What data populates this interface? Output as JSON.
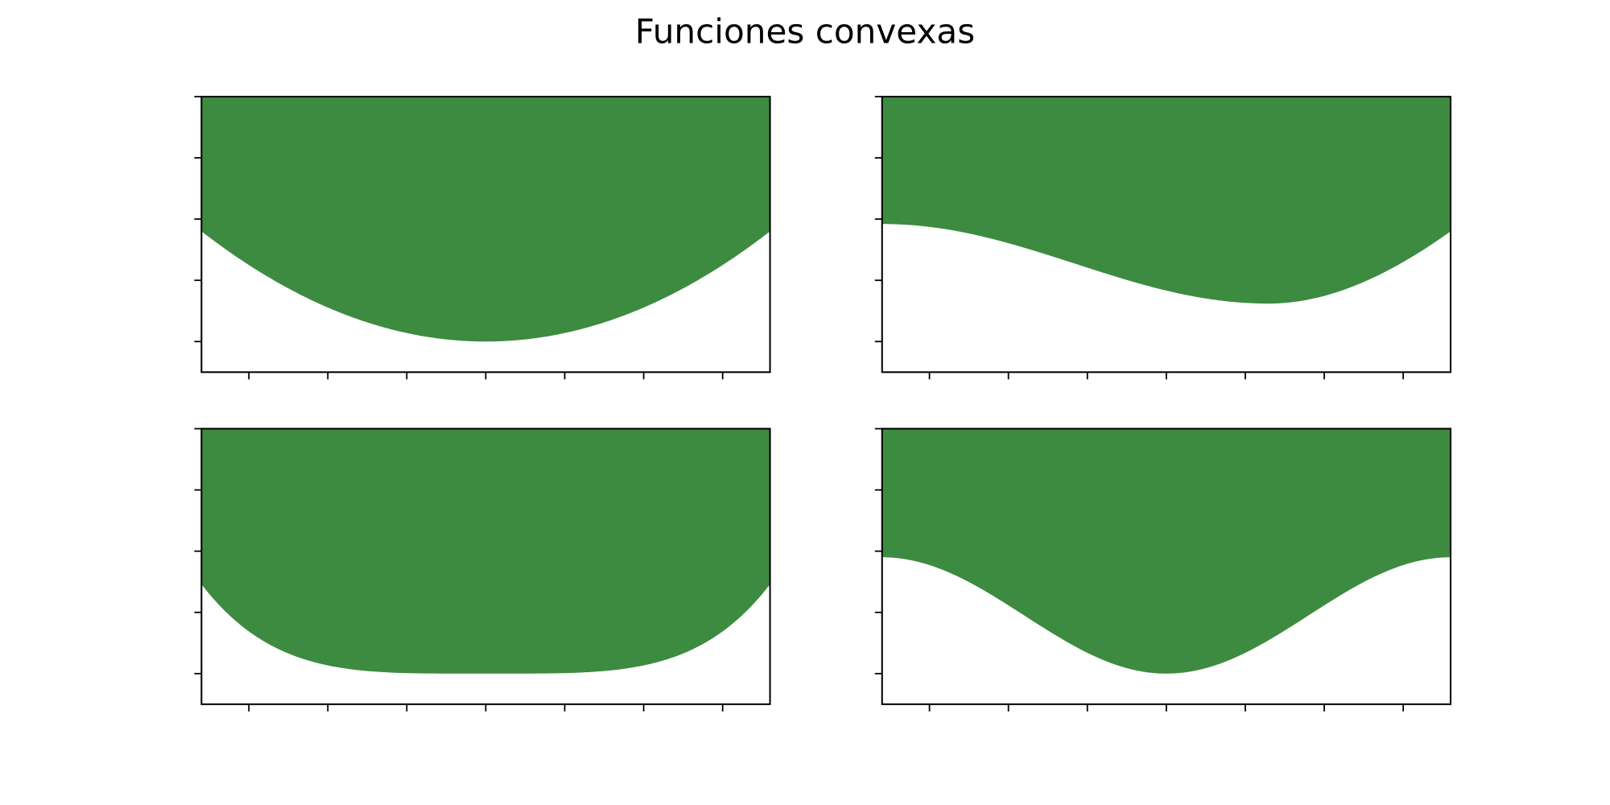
{
  "chart_data": {
    "title": "Funciones convexas",
    "fill_color": "#3d8b40",
    "background": "#ffffff",
    "xlim": [
      -3.6,
      3.6
    ],
    "ylim": [
      -0.5,
      4
    ],
    "x_ticks": [
      -3,
      -2,
      -1,
      0,
      1,
      2,
      3
    ],
    "y_ticks": [
      0,
      1,
      2,
      3,
      4
    ],
    "show_tick_labels": false,
    "grid": false,
    "charts": [
      {
        "type": "area",
        "fill": "above",
        "curve": "parabola",
        "params": {
          "a": 0.1389,
          "c": 0
        },
        "description": "convex parabola, minimum at x=0"
      },
      {
        "type": "area",
        "fill": "above",
        "curve": "quartic",
        "params": {
          "x0": 0,
          "x1": 1.25,
          "y0": 1.92,
          "peak": 2.08,
          "ymin": 0.62,
          "y_end": 1.92
        },
        "description": "smooth curve: flat at left, minimum near x=1.25"
      },
      {
        "type": "area",
        "fill": "above",
        "curve": "quartic_even",
        "params": {
          "c": 1.4,
          "ymin": 0
        },
        "description": "flat-bottomed even-power curve, minimum plateau near x=0"
      },
      {
        "type": "area",
        "fill": "above",
        "curve": "cosine",
        "params": {
          "amp": 0.95,
          "base": 0.95,
          "period": 7.2,
          "ymin": 0
        },
        "description": "cosine-like dip, minimum at x=0"
      }
    ]
  }
}
